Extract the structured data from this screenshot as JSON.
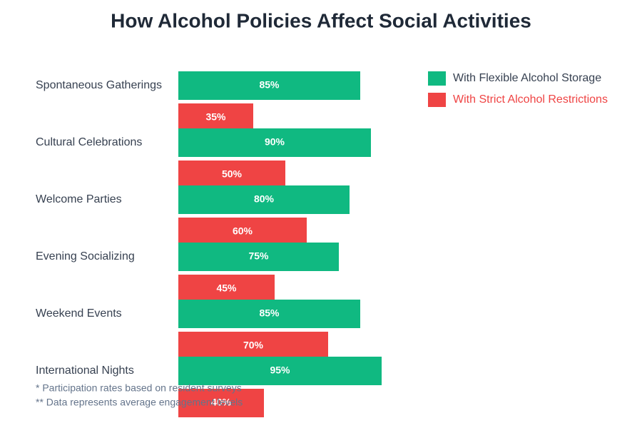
{
  "chart_data": {
    "type": "bar",
    "orientation": "horizontal",
    "title": "How Alcohol Policies Affect Social Activities",
    "categories": [
      "Spontaneous Gatherings",
      "Cultural Celebrations",
      "Welcome Parties",
      "Evening Socializing",
      "Weekend Events",
      "International Nights"
    ],
    "series": [
      {
        "name": "With Flexible Alcohol Storage",
        "color": "#10b981",
        "values": [
          85,
          90,
          80,
          75,
          85,
          95
        ],
        "value_labels": [
          "85%",
          "90%",
          "80%",
          "75%",
          "85%",
          "95%"
        ]
      },
      {
        "name": "With Strict Alcohol Restrictions",
        "color": "#ef4444",
        "values": [
          35,
          50,
          60,
          45,
          70,
          40
        ],
        "value_labels": [
          "35%",
          "50%",
          "60%",
          "45%",
          "70%",
          "40%"
        ]
      }
    ],
    "legend": "top-right",
    "notes": [
      "* Participation rates based on resident surveys",
      "** Data represents average engagement levels"
    ]
  }
}
